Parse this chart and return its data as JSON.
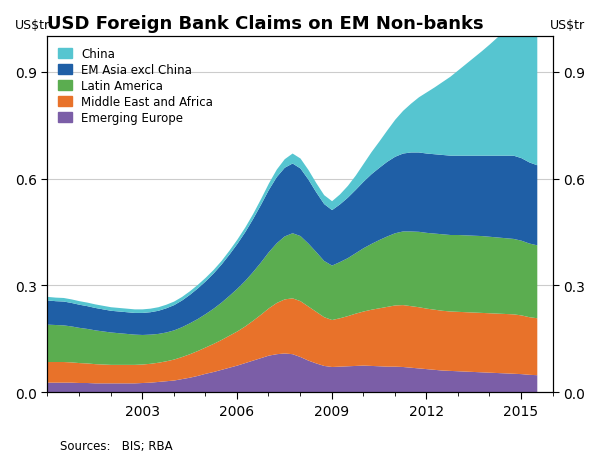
{
  "title": "USD Foreign Bank Claims on EM Non-banks",
  "ylabel_left": "US$tr",
  "ylabel_right": "US$tr",
  "source": "Sources:   BIS; RBA",
  "ylim": [
    0,
    1.0
  ],
  "yticks": [
    0.0,
    0.3,
    0.6,
    0.9
  ],
  "colors": {
    "Emerging Europe": "#7B5EA7",
    "Middle East and Africa": "#E8722A",
    "Latin America": "#5BAD50",
    "EM Asia excl China": "#1F5FA6",
    "China": "#56C5D0"
  },
  "legend_order": [
    "China",
    "EM Asia excl China",
    "Latin America",
    "Middle East and Africa",
    "Emerging Europe"
  ],
  "years": [
    2000.0,
    2000.25,
    2000.5,
    2000.75,
    2001.0,
    2001.25,
    2001.5,
    2001.75,
    2002.0,
    2002.25,
    2002.5,
    2002.75,
    2003.0,
    2003.25,
    2003.5,
    2003.75,
    2004.0,
    2004.25,
    2004.5,
    2004.75,
    2005.0,
    2005.25,
    2005.5,
    2005.75,
    2006.0,
    2006.25,
    2006.5,
    2006.75,
    2007.0,
    2007.25,
    2007.5,
    2007.75,
    2008.0,
    2008.25,
    2008.5,
    2008.75,
    2009.0,
    2009.25,
    2009.5,
    2009.75,
    2010.0,
    2010.25,
    2010.5,
    2010.75,
    2011.0,
    2011.25,
    2011.5,
    2011.75,
    2012.0,
    2012.25,
    2012.5,
    2012.75,
    2013.0,
    2013.25,
    2013.5,
    2013.75,
    2014.0,
    2014.25,
    2014.5,
    2014.75,
    2015.0,
    2015.25,
    2015.5
  ],
  "Emerging Europe": [
    0.028,
    0.028,
    0.028,
    0.028,
    0.027,
    0.027,
    0.026,
    0.026,
    0.026,
    0.026,
    0.026,
    0.026,
    0.027,
    0.028,
    0.03,
    0.032,
    0.034,
    0.038,
    0.042,
    0.047,
    0.053,
    0.058,
    0.064,
    0.07,
    0.076,
    0.083,
    0.09,
    0.097,
    0.104,
    0.108,
    0.11,
    0.108,
    0.1,
    0.09,
    0.082,
    0.075,
    0.072,
    0.073,
    0.074,
    0.075,
    0.076,
    0.075,
    0.074,
    0.073,
    0.073,
    0.072,
    0.07,
    0.068,
    0.066,
    0.064,
    0.062,
    0.061,
    0.06,
    0.059,
    0.058,
    0.057,
    0.056,
    0.055,
    0.054,
    0.053,
    0.052,
    0.05,
    0.049
  ],
  "Middle East and Africa": [
    0.058,
    0.058,
    0.058,
    0.057,
    0.056,
    0.055,
    0.054,
    0.053,
    0.052,
    0.052,
    0.052,
    0.052,
    0.052,
    0.053,
    0.054,
    0.056,
    0.059,
    0.062,
    0.066,
    0.07,
    0.074,
    0.079,
    0.084,
    0.09,
    0.096,
    0.103,
    0.112,
    0.122,
    0.133,
    0.144,
    0.152,
    0.157,
    0.157,
    0.152,
    0.145,
    0.137,
    0.132,
    0.136,
    0.141,
    0.147,
    0.152,
    0.158,
    0.163,
    0.168,
    0.172,
    0.174,
    0.173,
    0.172,
    0.17,
    0.169,
    0.168,
    0.167,
    0.167,
    0.167,
    0.167,
    0.167,
    0.167,
    0.167,
    0.167,
    0.167,
    0.165,
    0.162,
    0.16
  ],
  "Latin America": [
    0.105,
    0.104,
    0.103,
    0.101,
    0.099,
    0.097,
    0.095,
    0.093,
    0.091,
    0.089,
    0.087,
    0.085,
    0.083,
    0.082,
    0.081,
    0.081,
    0.082,
    0.084,
    0.087,
    0.09,
    0.094,
    0.099,
    0.105,
    0.112,
    0.12,
    0.128,
    0.137,
    0.147,
    0.158,
    0.168,
    0.177,
    0.183,
    0.183,
    0.177,
    0.168,
    0.158,
    0.153,
    0.158,
    0.163,
    0.17,
    0.178,
    0.185,
    0.192,
    0.198,
    0.203,
    0.207,
    0.21,
    0.212,
    0.213,
    0.214,
    0.215,
    0.215,
    0.216,
    0.216,
    0.216,
    0.216,
    0.215,
    0.214,
    0.213,
    0.212,
    0.21,
    0.207,
    0.205
  ],
  "EM Asia excl China": [
    0.068,
    0.067,
    0.067,
    0.066,
    0.065,
    0.064,
    0.063,
    0.062,
    0.061,
    0.061,
    0.061,
    0.061,
    0.062,
    0.063,
    0.065,
    0.068,
    0.071,
    0.075,
    0.08,
    0.086,
    0.092,
    0.099,
    0.107,
    0.116,
    0.126,
    0.137,
    0.149,
    0.162,
    0.175,
    0.186,
    0.193,
    0.196,
    0.19,
    0.18,
    0.168,
    0.16,
    0.156,
    0.162,
    0.17,
    0.178,
    0.187,
    0.196,
    0.203,
    0.21,
    0.215,
    0.219,
    0.222,
    0.223,
    0.223,
    0.223,
    0.223,
    0.223,
    0.223,
    0.224,
    0.225,
    0.226,
    0.228,
    0.23,
    0.232,
    0.234,
    0.232,
    0.228,
    0.225
  ],
  "China": [
    0.01,
    0.01,
    0.01,
    0.01,
    0.01,
    0.01,
    0.01,
    0.01,
    0.01,
    0.01,
    0.01,
    0.01,
    0.01,
    0.01,
    0.01,
    0.01,
    0.01,
    0.01,
    0.01,
    0.01,
    0.01,
    0.01,
    0.01,
    0.011,
    0.012,
    0.013,
    0.014,
    0.016,
    0.018,
    0.021,
    0.024,
    0.028,
    0.028,
    0.027,
    0.026,
    0.025,
    0.025,
    0.028,
    0.033,
    0.04,
    0.05,
    0.062,
    0.074,
    0.088,
    0.104,
    0.12,
    0.137,
    0.155,
    0.172,
    0.188,
    0.205,
    0.222,
    0.24,
    0.258,
    0.276,
    0.294,
    0.313,
    0.333,
    0.352,
    0.368,
    0.37,
    0.368,
    0.36
  ]
}
